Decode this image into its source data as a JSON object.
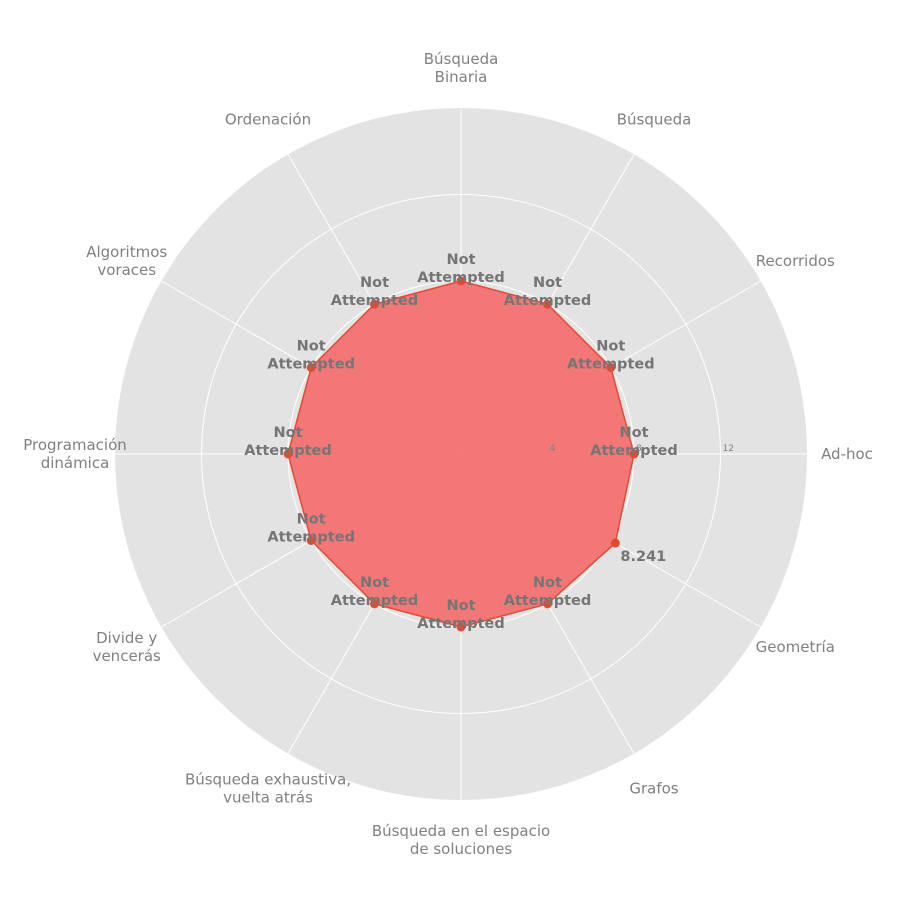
{
  "chart_data": {
    "type": "radar",
    "categories": [
      "Ad-hoc",
      "Recorridos",
      "Búsqueda",
      "Búsqueda\nBinaria",
      "Ordenación",
      "Algoritmos\nvoraces",
      "Programación\ndinámica",
      "Divide y\nvencerás",
      "Búsqueda exhaustiva,\nvuelta atrás",
      "Búsqueda en el espacio\nde soluciones",
      "Grafos",
      "Geometría"
    ],
    "values": [
      8,
      8,
      8,
      8,
      8,
      8,
      8,
      8,
      8,
      8,
      8,
      8.241
    ],
    "data_labels": [
      "Not\nAttempted",
      "Not\nAttempted",
      "Not\nAttempted",
      "Not\nAttempted",
      "Not\nAttempted",
      "Not\nAttempted",
      "Not\nAttempted",
      "Not\nAttempted",
      "Not\nAttempted",
      "Not\nAttempted",
      "Not\nAttempted",
      "8.241"
    ],
    "radial_ticks": [
      "4",
      "8",
      "12"
    ],
    "radial_tick_values": [
      4,
      8,
      12
    ],
    "rmax": 16,
    "grid": true,
    "colors": {
      "background": "#e3e3e3",
      "grid": "#ffffff",
      "fill": "#f37171",
      "line": "#e34a33",
      "marker": "#e34a33",
      "label": "#808080",
      "data_label": "#757575"
    }
  }
}
